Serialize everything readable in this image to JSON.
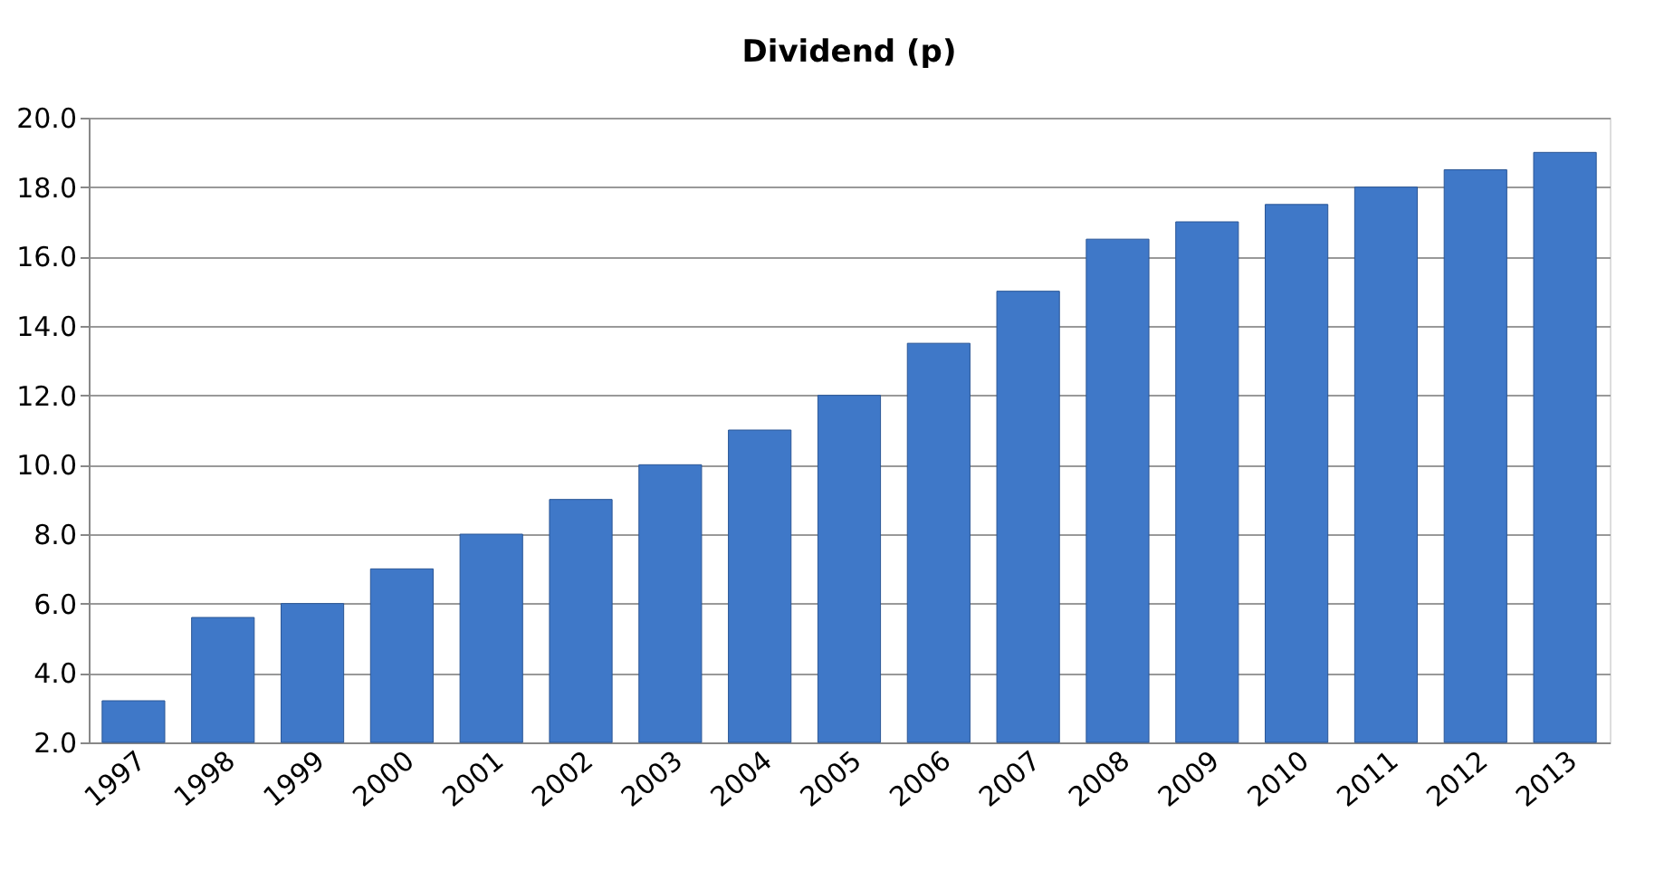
{
  "chart_data": {
    "type": "bar",
    "title": "Dividend (p)",
    "categories": [
      "1997",
      "1998",
      "1999",
      "2000",
      "2001",
      "2002",
      "2003",
      "2004",
      "2005",
      "2006",
      "2007",
      "2008",
      "2009",
      "2010",
      "2011",
      "2012",
      "2013"
    ],
    "values": [
      3.2,
      5.6,
      6.0,
      7.0,
      8.0,
      9.0,
      10.0,
      11.0,
      12.0,
      13.5,
      15.0,
      16.5,
      17.0,
      17.5,
      18.0,
      18.5,
      19.0
    ],
    "color": "#3f78c8",
    "ylim": [
      2.0,
      20.0
    ],
    "yticks": [
      {
        "value": 2,
        "label": "2.0"
      },
      {
        "value": 4,
        "label": "4.0"
      },
      {
        "value": 6,
        "label": "6.0"
      },
      {
        "value": 8,
        "label": "8.0"
      },
      {
        "value": 10,
        "label": "10.0"
      },
      {
        "value": 12,
        "label": "12.0"
      },
      {
        "value": 14,
        "label": "14.0"
      },
      {
        "value": 16,
        "label": "16.0"
      },
      {
        "value": 18,
        "label": "18.0"
      },
      {
        "value": 20,
        "label": "20.0"
      }
    ],
    "grid": "y"
  }
}
